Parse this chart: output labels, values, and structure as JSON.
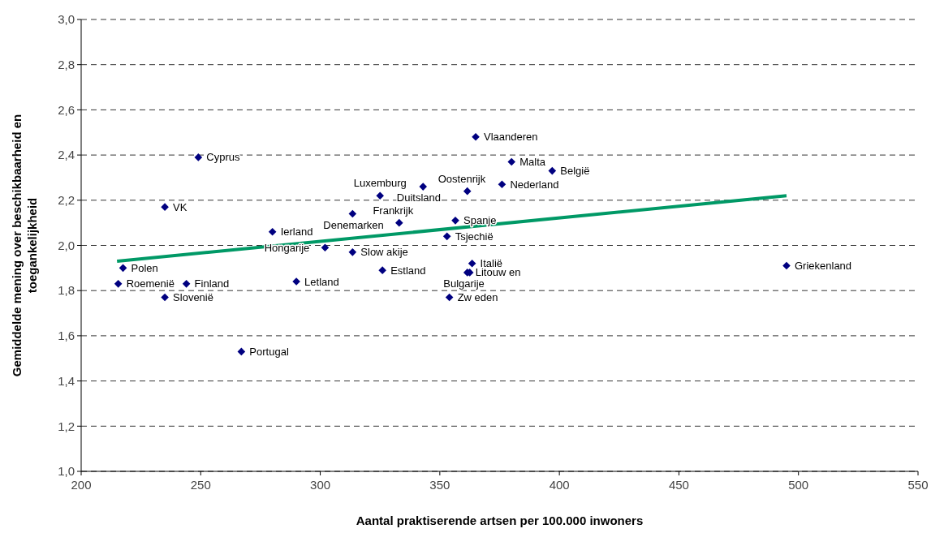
{
  "chart_data": {
    "type": "scatter",
    "xlabel": "Aantal praktiserende artsen per 100.000 inwoners",
    "ylabel": "Gemiddelde mening over beschikbaarheid en toegankelijkheid",
    "xlim": [
      200,
      550
    ],
    "xticks": [
      200,
      250,
      300,
      350,
      400,
      450,
      500,
      550
    ],
    "ylim": [
      1,
      3
    ],
    "yticks": [
      {
        "value": 1,
        "label": "1,0"
      },
      {
        "value": 1.2,
        "label": "1,2"
      },
      {
        "value": 1.4,
        "label": "1,4"
      },
      {
        "value": 1.6,
        "label": "1,6"
      },
      {
        "value": 1.8,
        "label": "1,8"
      },
      {
        "value": 2,
        "label": "2,0"
      },
      {
        "value": 2.2,
        "label": "2,2"
      },
      {
        "value": 2.4,
        "label": "2,4"
      },
      {
        "value": 2.6,
        "label": "2,6"
      },
      {
        "value": 2.8,
        "label": "2,8"
      },
      {
        "value": 3,
        "label": "3,0"
      }
    ],
    "grid": "y",
    "marker": "diamond",
    "series": [
      {
        "color": "#000080",
        "x": [
          249,
          235,
          280,
          217.5,
          215.5,
          244,
          235,
          267,
          302,
          313.5,
          290,
          325,
          313.5,
          365,
          380,
          397,
          376,
          343,
          361.5,
          333,
          356.5,
          353,
          326,
          363.5,
          362.5,
          361.5,
          354,
          495
        ],
        "values": [
          2.39,
          2.17,
          2.06,
          1.9,
          1.83,
          1.83,
          1.77,
          1.53,
          1.99,
          1.97,
          1.84,
          2.22,
          2.14,
          2.48,
          2.37,
          2.33,
          2.27,
          2.26,
          2.24,
          2.1,
          2.11,
          2.04,
          1.89,
          1.92,
          1.88,
          1.88,
          1.77,
          1.91
        ]
      },
      {
        "type": "line",
        "color": "#009966",
        "marker": "none",
        "line_style": "solid",
        "x": [
          215,
          495
        ],
        "values": [
          1.93,
          2.22
        ]
      }
    ],
    "annotations": [
      {
        "text": "Cyprus",
        "x": 249,
        "y": 2.39
      },
      {
        "text": "VK",
        "x": 235,
        "y": 2.17
      },
      {
        "text": "Ierland",
        "x": 280,
        "y": 2.06
      },
      {
        "text": "Polen",
        "x": 217.5,
        "y": 1.9
      },
      {
        "text": "Roemenië",
        "x": 215.5,
        "y": 1.83
      },
      {
        "text": "Finland",
        "x": 244,
        "y": 1.83
      },
      {
        "text": "Slovenië",
        "x": 235,
        "y": 1.77
      },
      {
        "text": "Portugal",
        "x": 267,
        "y": 1.53
      },
      {
        "text": "Hongarije",
        "x": 302,
        "y": 1.99
      },
      {
        "text": "Slow akije",
        "x": 313.5,
        "y": 1.97
      },
      {
        "text": "Letland",
        "x": 290,
        "y": 1.84
      },
      {
        "text": "Luxemburg",
        "x": 325,
        "y": 2.22
      },
      {
        "text": "Denemarken",
        "x": 313.5,
        "y": 2.14
      },
      {
        "text": "Vlaanderen",
        "x": 365,
        "y": 2.48
      },
      {
        "text": "Malta",
        "x": 380,
        "y": 2.37
      },
      {
        "text": "België",
        "x": 397,
        "y": 2.33
      },
      {
        "text": "Nederland",
        "x": 376,
        "y": 2.27
      },
      {
        "text": "Duitsland",
        "x": 343,
        "y": 2.26
      },
      {
        "text": "Oostenrijk",
        "x": 361.5,
        "y": 2.24
      },
      {
        "text": "Frankrijk",
        "x": 333,
        "y": 2.1
      },
      {
        "text": "Spanje",
        "x": 356.5,
        "y": 2.11
      },
      {
        "text": "Tsjechië",
        "x": 353,
        "y": 2.04
      },
      {
        "text": "Estland",
        "x": 326,
        "y": 1.89
      },
      {
        "text": "Italië",
        "x": 363.5,
        "y": 1.92
      },
      {
        "text": "Bulgarije",
        "x": 362.5,
        "y": 1.88
      },
      {
        "text": "Litouw en",
        "x": 361.5,
        "y": 1.88
      },
      {
        "text": "Zw eden",
        "x": 354,
        "y": 1.77
      },
      {
        "text": "Griekenland",
        "x": 495,
        "y": 1.91
      }
    ]
  }
}
